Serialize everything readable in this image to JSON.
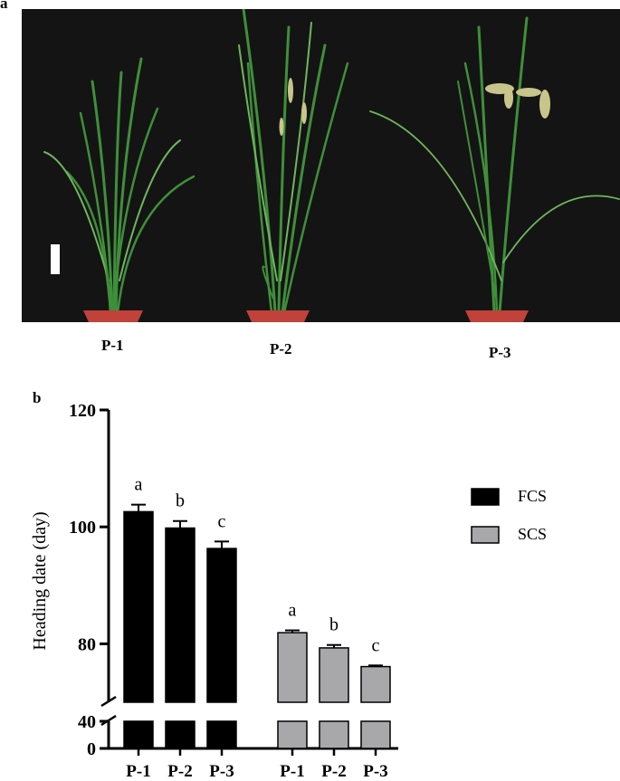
{
  "figure": {
    "panel_a_label": "a",
    "panel_b_label": "b",
    "plant_labels": [
      "P-1",
      "P-2",
      "P-3"
    ]
  },
  "colors": {
    "photo_background": "#141414",
    "leaf": "#3f8f3a",
    "leaf_light": "#6fb55e",
    "panicle": "#c7c58a",
    "pot": "#c0423a",
    "fcs_bar": "#000000",
    "scs_bar": "#a8a8aa"
  },
  "chart_data": {
    "type": "bar",
    "ylabel": "Heading date (day)",
    "ylim_upper": [
      70,
      120
    ],
    "ylim_lower": [
      0,
      40
    ],
    "yticks_upper": [
      80,
      100,
      120
    ],
    "yticks_lower": [
      0,
      40
    ],
    "axis_break": true,
    "legend_position": "right",
    "categories": [
      "P-1",
      "P-2",
      "P-3"
    ],
    "series": [
      {
        "name": "FCS",
        "color": "#000000",
        "values": [
          102.6,
          99.8,
          96.3
        ],
        "errors": [
          1.2,
          1.2,
          1.2
        ],
        "letters": [
          "a",
          "b",
          "c"
        ]
      },
      {
        "name": "SCS",
        "color": "#a8a8aa",
        "values": [
          81.9,
          79.3,
          76.1
        ],
        "errors": [
          0.4,
          0.5,
          0.2
        ],
        "letters": [
          "a",
          "b",
          "c"
        ]
      }
    ]
  }
}
